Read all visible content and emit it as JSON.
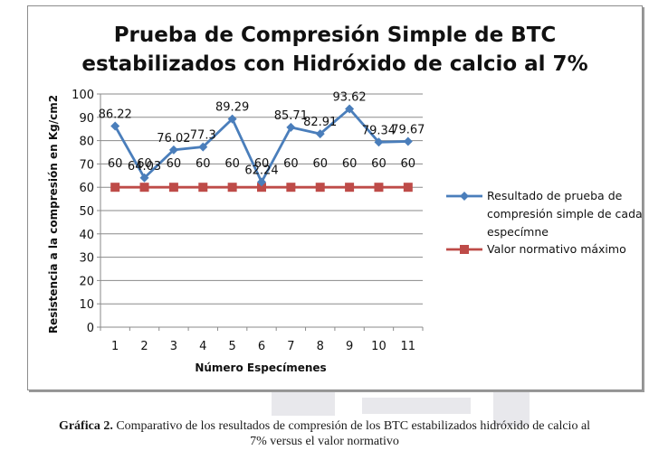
{
  "chart_data": {
    "type": "line",
    "title_line1": "Prueba de Compresión Simple de BTC",
    "title_line2": "estabilizados con Hidróxido de calcio al 7%",
    "xlabel": "Número Especímenes",
    "ylabel": "Resistencia a la compresión en Kg/cm2",
    "categories": [
      "1",
      "2",
      "3",
      "4",
      "5",
      "6",
      "7",
      "8",
      "9",
      "10",
      "11"
    ],
    "ylim": [
      0,
      100
    ],
    "yticks": [
      "0",
      "10",
      "20",
      "30",
      "40",
      "50",
      "60",
      "70",
      "80",
      "90",
      "100"
    ],
    "grid": true,
    "legend_position": "right",
    "series": [
      {
        "name": "Resultado de prueba de compresión simple de cada especímne",
        "legend_lines": [
          "Resultado de prueba de",
          "compresión simple de cada",
          "especímne"
        ],
        "values": [
          86.22,
          64.03,
          76.02,
          77.3,
          89.29,
          62.24,
          85.71,
          82.91,
          93.62,
          79.34,
          79.67
        ],
        "labels": [
          "86.22",
          "64.03",
          "76.02",
          "77.3",
          "89.29",
          "62.24",
          "85.71",
          "82.91",
          "93.62",
          "79.34",
          "79.67"
        ],
        "color": "#4a7ebb",
        "marker": "diamond"
      },
      {
        "name": "Valor normativo máximo",
        "legend_lines": [
          "Valor normativo máximo"
        ],
        "values": [
          60,
          60,
          60,
          60,
          60,
          60,
          60,
          60,
          60,
          60,
          60
        ],
        "labels": [
          "60",
          "60",
          "60",
          "60",
          "60",
          "60",
          "60",
          "60",
          "60",
          "60",
          "60"
        ],
        "color": "#be4b48",
        "marker": "square"
      }
    ]
  },
  "caption": {
    "label": "Gráfica 2.",
    "line1_rest": " Comparativo de los resultados de compresión de los BTC estabilizados hidróxido de calcio al",
    "line2": "7% versus el valor normativo"
  }
}
